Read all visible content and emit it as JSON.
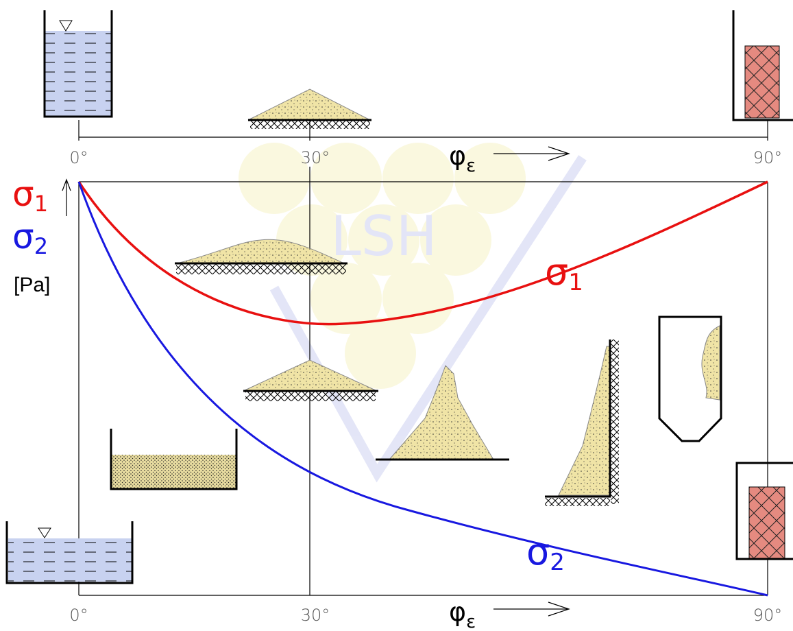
{
  "top_axis": {
    "ticks": [
      "0°",
      "30°",
      "90°"
    ],
    "label": {
      "symbol": "φ",
      "subscript": "ε"
    }
  },
  "bottom_axis": {
    "ticks": [
      "0°",
      "30°",
      "90°"
    ],
    "label": {
      "symbol": "φ",
      "subscript": "ε"
    }
  },
  "y_axis": {
    "labels": [
      {
        "symbol": "σ",
        "subscript": "1",
        "color": "#e81010"
      },
      {
        "symbol": "σ",
        "subscript": "2",
        "color": "#1818e0"
      }
    ],
    "unit": "[Pa]"
  },
  "curves": [
    {
      "symbol": "σ",
      "subscript": "1",
      "color": "#e81010"
    },
    {
      "symbol": "σ",
      "subscript": "2",
      "color": "#1818e0"
    }
  ],
  "watermark": "LSH"
}
